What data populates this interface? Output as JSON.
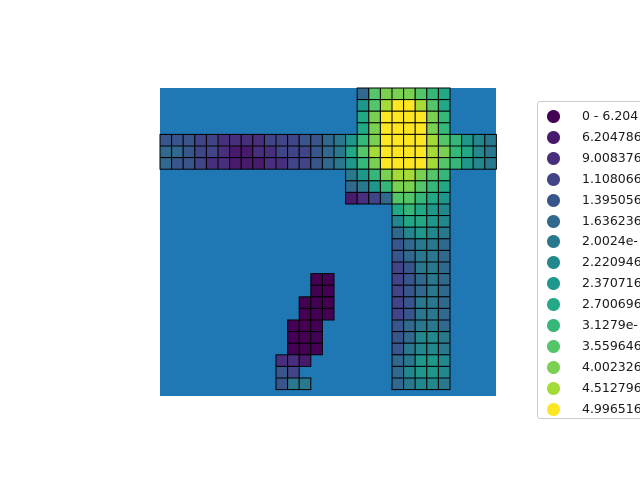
{
  "chart_data": {
    "type": "heatmap",
    "title": "",
    "xlabel": "",
    "ylabel": "",
    "background_color": "#1f77b4",
    "cell_edge_color": "#000000",
    "colormap": "viridis",
    "grid_rows": 26,
    "grid_cols": 29,
    "legend": {
      "placement": "right (clipped at image edge)",
      "labels": [
        "0 - 6.204",
        "6.204786",
        "9.008376",
        "1.108066",
        "1.395056",
        "1.636236",
        "2.0024e-",
        "2.220946",
        "2.370716",
        "2.700696",
        "3.1279e-",
        "3.559646",
        "4.002326",
        "4.512796",
        "4.996516"
      ],
      "colors": [
        "#440154",
        "#481a6c",
        "#472f7d",
        "#414487",
        "#39568c",
        "#31688e",
        "#2a788e",
        "#23888e",
        "#1f988b",
        "#22a884",
        "#35b779",
        "#54c568",
        "#7ad151",
        "#a5db36",
        "#fde725"
      ]
    },
    "cells": [
      {
        "row": 0,
        "col": 17,
        "cls": 5
      },
      {
        "row": 0,
        "col": 18,
        "cls": 11
      },
      {
        "row": 0,
        "col": 19,
        "cls": 12
      },
      {
        "row": 0,
        "col": 20,
        "cls": 12
      },
      {
        "row": 0,
        "col": 21,
        "cls": 12
      },
      {
        "row": 0,
        "col": 22,
        "cls": 11
      },
      {
        "row": 0,
        "col": 23,
        "cls": 10
      },
      {
        "row": 0,
        "col": 24,
        "cls": 9
      },
      {
        "row": 1,
        "col": 17,
        "cls": 8
      },
      {
        "row": 1,
        "col": 18,
        "cls": 11
      },
      {
        "row": 1,
        "col": 19,
        "cls": 13
      },
      {
        "row": 1,
        "col": 20,
        "cls": 14
      },
      {
        "row": 1,
        "col": 21,
        "cls": 14
      },
      {
        "row": 1,
        "col": 22,
        "cls": 13
      },
      {
        "row": 1,
        "col": 23,
        "cls": 11
      },
      {
        "row": 1,
        "col": 24,
        "cls": 9
      },
      {
        "row": 2,
        "col": 17,
        "cls": 9
      },
      {
        "row": 2,
        "col": 18,
        "cls": 12
      },
      {
        "row": 2,
        "col": 19,
        "cls": 14
      },
      {
        "row": 2,
        "col": 20,
        "cls": 14
      },
      {
        "row": 2,
        "col": 21,
        "cls": 14
      },
      {
        "row": 2,
        "col": 22,
        "cls": 14
      },
      {
        "row": 2,
        "col": 23,
        "cls": 12
      },
      {
        "row": 2,
        "col": 24,
        "cls": 10
      },
      {
        "row": 3,
        "col": 17,
        "cls": 9
      },
      {
        "row": 3,
        "col": 18,
        "cls": 12
      },
      {
        "row": 3,
        "col": 19,
        "cls": 14
      },
      {
        "row": 3,
        "col": 20,
        "cls": 14
      },
      {
        "row": 3,
        "col": 21,
        "cls": 14
      },
      {
        "row": 3,
        "col": 22,
        "cls": 14
      },
      {
        "row": 3,
        "col": 23,
        "cls": 12
      },
      {
        "row": 3,
        "col": 24,
        "cls": 10
      },
      {
        "row": 4,
        "col": 0,
        "cls": 4
      },
      {
        "row": 4,
        "col": 1,
        "cls": 4
      },
      {
        "row": 4,
        "col": 2,
        "cls": 4
      },
      {
        "row": 4,
        "col": 3,
        "cls": 3
      },
      {
        "row": 4,
        "col": 4,
        "cls": 3
      },
      {
        "row": 4,
        "col": 5,
        "cls": 2
      },
      {
        "row": 4,
        "col": 6,
        "cls": 2
      },
      {
        "row": 4,
        "col": 7,
        "cls": 2
      },
      {
        "row": 4,
        "col": 8,
        "cls": 2
      },
      {
        "row": 4,
        "col": 9,
        "cls": 3
      },
      {
        "row": 4,
        "col": 10,
        "cls": 3
      },
      {
        "row": 4,
        "col": 11,
        "cls": 3
      },
      {
        "row": 4,
        "col": 12,
        "cls": 4
      },
      {
        "row": 4,
        "col": 13,
        "cls": 4
      },
      {
        "row": 4,
        "col": 14,
        "cls": 5
      },
      {
        "row": 4,
        "col": 15,
        "cls": 6
      },
      {
        "row": 4,
        "col": 16,
        "cls": 8
      },
      {
        "row": 4,
        "col": 17,
        "cls": 10
      },
      {
        "row": 4,
        "col": 18,
        "cls": 12
      },
      {
        "row": 4,
        "col": 19,
        "cls": 14
      },
      {
        "row": 4,
        "col": 20,
        "cls": 14
      },
      {
        "row": 4,
        "col": 21,
        "cls": 14
      },
      {
        "row": 4,
        "col": 22,
        "cls": 14
      },
      {
        "row": 4,
        "col": 23,
        "cls": 13
      },
      {
        "row": 4,
        "col": 24,
        "cls": 11
      },
      {
        "row": 4,
        "col": 25,
        "cls": 10
      },
      {
        "row": 4,
        "col": 26,
        "cls": 8
      },
      {
        "row": 4,
        "col": 27,
        "cls": 7
      },
      {
        "row": 4,
        "col": 28,
        "cls": 6
      },
      {
        "row": 5,
        "col": 0,
        "cls": 5
      },
      {
        "row": 5,
        "col": 1,
        "cls": 5
      },
      {
        "row": 5,
        "col": 2,
        "cls": 4
      },
      {
        "row": 5,
        "col": 3,
        "cls": 3
      },
      {
        "row": 5,
        "col": 4,
        "cls": 3
      },
      {
        "row": 5,
        "col": 5,
        "cls": 2
      },
      {
        "row": 5,
        "col": 6,
        "cls": 1
      },
      {
        "row": 5,
        "col": 7,
        "cls": 1
      },
      {
        "row": 5,
        "col": 8,
        "cls": 2
      },
      {
        "row": 5,
        "col": 9,
        "cls": 2
      },
      {
        "row": 5,
        "col": 10,
        "cls": 3
      },
      {
        "row": 5,
        "col": 11,
        "cls": 3
      },
      {
        "row": 5,
        "col": 12,
        "cls": 3
      },
      {
        "row": 5,
        "col": 13,
        "cls": 4
      },
      {
        "row": 5,
        "col": 14,
        "cls": 5
      },
      {
        "row": 5,
        "col": 15,
        "cls": 6
      },
      {
        "row": 5,
        "col": 16,
        "cls": 9
      },
      {
        "row": 5,
        "col": 17,
        "cls": 11
      },
      {
        "row": 5,
        "col": 18,
        "cls": 13
      },
      {
        "row": 5,
        "col": 19,
        "cls": 14
      },
      {
        "row": 5,
        "col": 20,
        "cls": 14
      },
      {
        "row": 5,
        "col": 21,
        "cls": 14
      },
      {
        "row": 5,
        "col": 22,
        "cls": 14
      },
      {
        "row": 5,
        "col": 23,
        "cls": 13
      },
      {
        "row": 5,
        "col": 24,
        "cls": 12
      },
      {
        "row": 5,
        "col": 25,
        "cls": 10
      },
      {
        "row": 5,
        "col": 26,
        "cls": 9
      },
      {
        "row": 5,
        "col": 27,
        "cls": 7
      },
      {
        "row": 5,
        "col": 28,
        "cls": 6
      },
      {
        "row": 6,
        "col": 0,
        "cls": 5
      },
      {
        "row": 6,
        "col": 1,
        "cls": 4
      },
      {
        "row": 6,
        "col": 2,
        "cls": 4
      },
      {
        "row": 6,
        "col": 3,
        "cls": 3
      },
      {
        "row": 6,
        "col": 4,
        "cls": 2
      },
      {
        "row": 6,
        "col": 5,
        "cls": 2
      },
      {
        "row": 6,
        "col": 6,
        "cls": 1
      },
      {
        "row": 6,
        "col": 7,
        "cls": 1
      },
      {
        "row": 6,
        "col": 8,
        "cls": 1
      },
      {
        "row": 6,
        "col": 9,
        "cls": 2
      },
      {
        "row": 6,
        "col": 10,
        "cls": 2
      },
      {
        "row": 6,
        "col": 11,
        "cls": 3
      },
      {
        "row": 6,
        "col": 12,
        "cls": 3
      },
      {
        "row": 6,
        "col": 13,
        "cls": 4
      },
      {
        "row": 6,
        "col": 14,
        "cls": 5
      },
      {
        "row": 6,
        "col": 15,
        "cls": 6
      },
      {
        "row": 6,
        "col": 16,
        "cls": 8
      },
      {
        "row": 6,
        "col": 17,
        "cls": 10
      },
      {
        "row": 6,
        "col": 18,
        "cls": 12
      },
      {
        "row": 6,
        "col": 19,
        "cls": 14
      },
      {
        "row": 6,
        "col": 20,
        "cls": 14
      },
      {
        "row": 6,
        "col": 21,
        "cls": 14
      },
      {
        "row": 6,
        "col": 22,
        "cls": 14
      },
      {
        "row": 6,
        "col": 23,
        "cls": 13
      },
      {
        "row": 6,
        "col": 24,
        "cls": 11
      },
      {
        "row": 6,
        "col": 25,
        "cls": 10
      },
      {
        "row": 6,
        "col": 26,
        "cls": 8
      },
      {
        "row": 6,
        "col": 27,
        "cls": 7
      },
      {
        "row": 6,
        "col": 28,
        "cls": 6
      },
      {
        "row": 7,
        "col": 16,
        "cls": 6
      },
      {
        "row": 7,
        "col": 17,
        "cls": 8
      },
      {
        "row": 7,
        "col": 18,
        "cls": 10
      },
      {
        "row": 7,
        "col": 19,
        "cls": 12
      },
      {
        "row": 7,
        "col": 20,
        "cls": 13
      },
      {
        "row": 7,
        "col": 21,
        "cls": 13
      },
      {
        "row": 7,
        "col": 22,
        "cls": 12
      },
      {
        "row": 7,
        "col": 23,
        "cls": 11
      },
      {
        "row": 7,
        "col": 24,
        "cls": 10
      },
      {
        "row": 8,
        "col": 16,
        "cls": 5
      },
      {
        "row": 8,
        "col": 17,
        "cls": 6
      },
      {
        "row": 8,
        "col": 18,
        "cls": 8
      },
      {
        "row": 8,
        "col": 19,
        "cls": 10
      },
      {
        "row": 8,
        "col": 20,
        "cls": 12
      },
      {
        "row": 8,
        "col": 21,
        "cls": 12
      },
      {
        "row": 8,
        "col": 22,
        "cls": 11
      },
      {
        "row": 8,
        "col": 23,
        "cls": 10
      },
      {
        "row": 8,
        "col": 24,
        "cls": 9
      },
      {
        "row": 9,
        "col": 16,
        "cls": 1
      },
      {
        "row": 9,
        "col": 17,
        "cls": 2
      },
      {
        "row": 9,
        "col": 18,
        "cls": 3
      },
      {
        "row": 9,
        "col": 19,
        "cls": 5
      },
      {
        "row": 9,
        "col": 20,
        "cls": 11
      },
      {
        "row": 9,
        "col": 21,
        "cls": 11
      },
      {
        "row": 9,
        "col": 22,
        "cls": 10
      },
      {
        "row": 9,
        "col": 23,
        "cls": 9
      },
      {
        "row": 9,
        "col": 24,
        "cls": 8
      },
      {
        "row": 10,
        "col": 20,
        "cls": 9
      },
      {
        "row": 10,
        "col": 21,
        "cls": 10
      },
      {
        "row": 10,
        "col": 22,
        "cls": 9
      },
      {
        "row": 10,
        "col": 23,
        "cls": 8
      },
      {
        "row": 10,
        "col": 24,
        "cls": 7
      },
      {
        "row": 11,
        "col": 20,
        "cls": 7
      },
      {
        "row": 11,
        "col": 21,
        "cls": 9
      },
      {
        "row": 11,
        "col": 22,
        "cls": 9
      },
      {
        "row": 11,
        "col": 23,
        "cls": 8
      },
      {
        "row": 11,
        "col": 24,
        "cls": 7
      },
      {
        "row": 12,
        "col": 20,
        "cls": 5
      },
      {
        "row": 12,
        "col": 21,
        "cls": 7
      },
      {
        "row": 12,
        "col": 22,
        "cls": 8
      },
      {
        "row": 12,
        "col": 23,
        "cls": 7
      },
      {
        "row": 12,
        "col": 24,
        "cls": 6
      },
      {
        "row": 13,
        "col": 20,
        "cls": 4
      },
      {
        "row": 13,
        "col": 21,
        "cls": 5
      },
      {
        "row": 13,
        "col": 22,
        "cls": 6
      },
      {
        "row": 13,
        "col": 23,
        "cls": 6
      },
      {
        "row": 13,
        "col": 24,
        "cls": 5
      },
      {
        "row": 14,
        "col": 20,
        "cls": 4
      },
      {
        "row": 14,
        "col": 21,
        "cls": 5
      },
      {
        "row": 14,
        "col": 22,
        "cls": 6
      },
      {
        "row": 14,
        "col": 23,
        "cls": 6
      },
      {
        "row": 14,
        "col": 24,
        "cls": 5
      },
      {
        "row": 15,
        "col": 20,
        "cls": 3
      },
      {
        "row": 15,
        "col": 21,
        "cls": 4
      },
      {
        "row": 15,
        "col": 22,
        "cls": 6
      },
      {
        "row": 15,
        "col": 23,
        "cls": 6
      },
      {
        "row": 15,
        "col": 24,
        "cls": 5
      },
      {
        "row": 16,
        "col": 13,
        "cls": 0
      },
      {
        "row": 16,
        "col": 14,
        "cls": 0
      },
      {
        "row": 16,
        "col": 20,
        "cls": 3
      },
      {
        "row": 16,
        "col": 21,
        "cls": 4
      },
      {
        "row": 16,
        "col": 22,
        "cls": 5
      },
      {
        "row": 16,
        "col": 23,
        "cls": 6
      },
      {
        "row": 16,
        "col": 24,
        "cls": 5
      },
      {
        "row": 17,
        "col": 13,
        "cls": 0
      },
      {
        "row": 17,
        "col": 14,
        "cls": 0
      },
      {
        "row": 17,
        "col": 20,
        "cls": 3
      },
      {
        "row": 17,
        "col": 21,
        "cls": 4
      },
      {
        "row": 17,
        "col": 22,
        "cls": 5
      },
      {
        "row": 17,
        "col": 23,
        "cls": 6
      },
      {
        "row": 17,
        "col": 24,
        "cls": 5
      },
      {
        "row": 18,
        "col": 12,
        "cls": 0
      },
      {
        "row": 18,
        "col": 13,
        "cls": 0
      },
      {
        "row": 18,
        "col": 14,
        "cls": 0
      },
      {
        "row": 18,
        "col": 20,
        "cls": 3
      },
      {
        "row": 18,
        "col": 21,
        "cls": 4
      },
      {
        "row": 18,
        "col": 22,
        "cls": 6
      },
      {
        "row": 18,
        "col": 23,
        "cls": 6
      },
      {
        "row": 18,
        "col": 24,
        "cls": 5
      },
      {
        "row": 19,
        "col": 12,
        "cls": 0
      },
      {
        "row": 19,
        "col": 13,
        "cls": 0
      },
      {
        "row": 19,
        "col": 14,
        "cls": 0
      },
      {
        "row": 19,
        "col": 20,
        "cls": 3
      },
      {
        "row": 19,
        "col": 21,
        "cls": 4
      },
      {
        "row": 19,
        "col": 22,
        "cls": 6
      },
      {
        "row": 19,
        "col": 23,
        "cls": 6
      },
      {
        "row": 19,
        "col": 24,
        "cls": 5
      },
      {
        "row": 20,
        "col": 11,
        "cls": 0
      },
      {
        "row": 20,
        "col": 12,
        "cls": 0
      },
      {
        "row": 20,
        "col": 13,
        "cls": 0
      },
      {
        "row": 20,
        "col": 20,
        "cls": 4
      },
      {
        "row": 20,
        "col": 21,
        "cls": 5
      },
      {
        "row": 20,
        "col": 22,
        "cls": 6
      },
      {
        "row": 20,
        "col": 23,
        "cls": 6
      },
      {
        "row": 20,
        "col": 24,
        "cls": 5
      },
      {
        "row": 21,
        "col": 11,
        "cls": 0
      },
      {
        "row": 21,
        "col": 12,
        "cls": 0
      },
      {
        "row": 21,
        "col": 13,
        "cls": 0
      },
      {
        "row": 21,
        "col": 20,
        "cls": 4
      },
      {
        "row": 21,
        "col": 21,
        "cls": 5
      },
      {
        "row": 21,
        "col": 22,
        "cls": 7
      },
      {
        "row": 21,
        "col": 23,
        "cls": 7
      },
      {
        "row": 21,
        "col": 24,
        "cls": 6
      },
      {
        "row": 22,
        "col": 11,
        "cls": 0
      },
      {
        "row": 22,
        "col": 12,
        "cls": 0
      },
      {
        "row": 22,
        "col": 13,
        "cls": 0
      },
      {
        "row": 22,
        "col": 20,
        "cls": 4
      },
      {
        "row": 22,
        "col": 21,
        "cls": 6
      },
      {
        "row": 22,
        "col": 22,
        "cls": 7
      },
      {
        "row": 22,
        "col": 23,
        "cls": 7
      },
      {
        "row": 22,
        "col": 24,
        "cls": 6
      },
      {
        "row": 23,
        "col": 10,
        "cls": 2
      },
      {
        "row": 23,
        "col": 11,
        "cls": 2
      },
      {
        "row": 23,
        "col": 12,
        "cls": 1
      },
      {
        "row": 23,
        "col": 20,
        "cls": 5
      },
      {
        "row": 23,
        "col": 21,
        "cls": 6
      },
      {
        "row": 23,
        "col": 22,
        "cls": 8
      },
      {
        "row": 23,
        "col": 23,
        "cls": 8
      },
      {
        "row": 23,
        "col": 24,
        "cls": 7
      },
      {
        "row": 24,
        "col": 10,
        "cls": 4
      },
      {
        "row": 24,
        "col": 11,
        "cls": 3
      },
      {
        "row": 24,
        "col": 20,
        "cls": 5
      },
      {
        "row": 24,
        "col": 21,
        "cls": 7
      },
      {
        "row": 24,
        "col": 22,
        "cls": 8
      },
      {
        "row": 24,
        "col": 23,
        "cls": 8
      },
      {
        "row": 24,
        "col": 24,
        "cls": 7
      },
      {
        "row": 25,
        "col": 10,
        "cls": 4
      },
      {
        "row": 25,
        "col": 11,
        "cls": 6
      },
      {
        "row": 25,
        "col": 12,
        "cls": 6
      },
      {
        "row": 25,
        "col": 20,
        "cls": 5
      },
      {
        "row": 25,
        "col": 21,
        "cls": 6
      },
      {
        "row": 25,
        "col": 22,
        "cls": 7
      },
      {
        "row": 25,
        "col": 23,
        "cls": 7
      },
      {
        "row": 25,
        "col": 24,
        "cls": 6
      }
    ]
  }
}
